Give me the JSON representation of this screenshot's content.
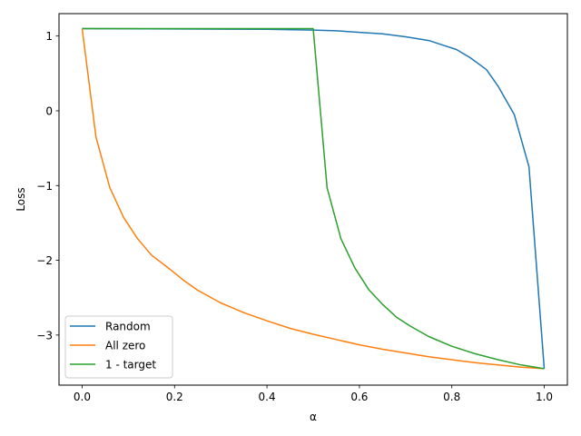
{
  "chart_data": {
    "type": "line",
    "xlabel": "α",
    "ylabel": "Loss",
    "xlim": [
      -0.05,
      1.05
    ],
    "ylim": [
      -3.67,
      1.3
    ],
    "xticks": [
      0.0,
      0.2,
      0.4,
      0.6,
      0.8,
      1.0
    ],
    "xtick_labels": [
      "0.0",
      "0.2",
      "0.4",
      "0.6",
      "0.8",
      "1.0"
    ],
    "yticks": [
      1,
      0,
      -1,
      -2,
      -3
    ],
    "ytick_labels": [
      "1",
      "0",
      "−1",
      "−2",
      "−3"
    ],
    "grid": false,
    "legend_position": "lower-left",
    "series": [
      {
        "name": "Random",
        "color": "#1f77b4",
        "x": [
          0.0,
          0.2,
          0.4,
          0.5,
          0.55,
          0.6,
          0.65,
          0.7,
          0.75,
          0.78,
          0.81,
          0.84,
          0.875,
          0.9,
          0.935,
          0.967,
          1.0
        ],
        "y": [
          1.1,
          1.095,
          1.09,
          1.08,
          1.07,
          1.05,
          1.03,
          0.99,
          0.94,
          0.88,
          0.82,
          0.71,
          0.55,
          0.33,
          -0.05,
          -0.75,
          -3.45
        ]
      },
      {
        "name": "All zero",
        "color": "#ff7f0e",
        "x": [
          0.0,
          0.03,
          0.06,
          0.09,
          0.12,
          0.15,
          0.19,
          0.22,
          0.25,
          0.3,
          0.35,
          0.4,
          0.45,
          0.5,
          0.55,
          0.6,
          0.65,
          0.7,
          0.75,
          0.8,
          0.85,
          0.9,
          0.95,
          1.0
        ],
        "y": [
          1.1,
          -0.35,
          -1.03,
          -1.43,
          -1.71,
          -1.93,
          -2.12,
          -2.27,
          -2.4,
          -2.57,
          -2.7,
          -2.81,
          -2.91,
          -2.99,
          -3.06,
          -3.13,
          -3.19,
          -3.24,
          -3.29,
          -3.33,
          -3.37,
          -3.4,
          -3.43,
          -3.45
        ]
      },
      {
        "name": "1 - target",
        "color": "#2ca02c",
        "x": [
          0.0,
          0.25,
          0.5,
          0.53,
          0.56,
          0.59,
          0.62,
          0.65,
          0.68,
          0.71,
          0.75,
          0.8,
          0.85,
          0.9,
          0.95,
          1.0
        ],
        "y": [
          1.1,
          1.1,
          1.1,
          -1.03,
          -1.71,
          -2.1,
          -2.39,
          -2.59,
          -2.76,
          -2.88,
          -3.02,
          -3.15,
          -3.25,
          -3.33,
          -3.4,
          -3.45
        ]
      }
    ]
  }
}
